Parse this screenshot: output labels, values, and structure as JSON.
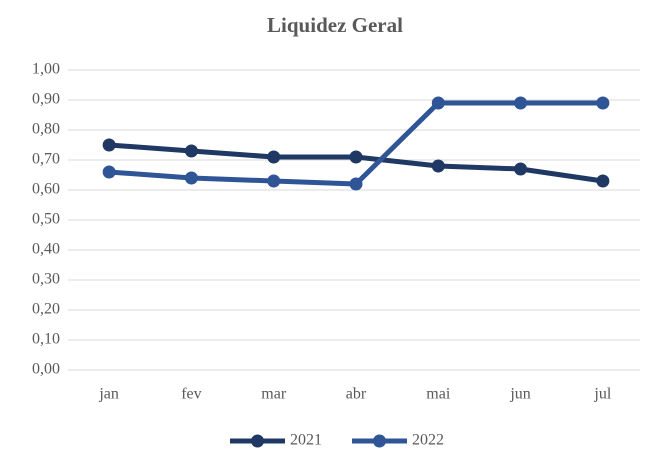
{
  "chart_data": {
    "type": "line",
    "title": "Liquidez Geral",
    "categories": [
      "jan",
      "fev",
      "mar",
      "abr",
      "mai",
      "jun",
      "jul"
    ],
    "series": [
      {
        "name": "2021",
        "color": "#1f3864",
        "values": [
          0.75,
          0.73,
          0.71,
          0.71,
          0.68,
          0.67,
          0.63
        ]
      },
      {
        "name": "2022",
        "color": "#2f5597",
        "values": [
          0.66,
          0.64,
          0.63,
          0.62,
          0.89,
          0.89,
          0.89
        ]
      }
    ],
    "ylim": [
      0,
      1
    ],
    "yticks": [
      {
        "value": 0,
        "label": "0,00"
      },
      {
        "value": 0.1,
        "label": "0,10"
      },
      {
        "value": 0.2,
        "label": "0,20"
      },
      {
        "value": 0.3,
        "label": "0,30"
      },
      {
        "value": 0.4,
        "label": "0,40"
      },
      {
        "value": 0.5,
        "label": "0,50"
      },
      {
        "value": 0.6,
        "label": "0,60"
      },
      {
        "value": 0.7,
        "label": "0,70"
      },
      {
        "value": 0.8,
        "label": "0,80"
      },
      {
        "value": 0.9,
        "label": "0,90"
      },
      {
        "value": 1,
        "label": "1,00"
      }
    ],
    "grid": true,
    "legend": "bottom"
  }
}
